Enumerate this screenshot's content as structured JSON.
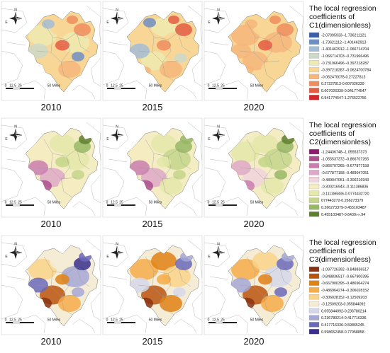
{
  "years": [
    "2010",
    "2015",
    "2020"
  ],
  "scale_labels": [
    "0",
    "12.5",
    "25",
    "50 Miles"
  ],
  "compass_letters": {
    "north": "N",
    "east": "E"
  },
  "rows": [
    {
      "id": "c1",
      "legend_title": [
        "The local regression",
        "coefficients of",
        "C1(dimensionless)"
      ],
      "legend_items": [
        {
          "label": "-2.07095933--1.736211121",
          "color": "#3a5ea8"
        },
        {
          "label": "-1.73621112--1.401462913",
          "color": "#6e8fc4"
        },
        {
          "label": "-1.401462912--1.066714704",
          "color": "#a3bcd6"
        },
        {
          "label": "-1.066714703--0.731966496",
          "color": "#cdd9c8"
        },
        {
          "label": "-0.731966496--0.397218287",
          "color": "#eeeab2"
        },
        {
          "label": "-0.397218287--0.0624700784",
          "color": "#f8d796"
        },
        {
          "label": "-0.062470078-0.27227813",
          "color": "#f6b67b"
        },
        {
          "label": "0.27227813-0.607026339",
          "color": "#f08d5f"
        },
        {
          "label": "0.607026339-0.941774547",
          "color": "#e55c44"
        },
        {
          "label": "0.941774547-1.276522756",
          "color": "#d7262b"
        }
      ]
    },
    {
      "id": "c2",
      "legend_title": [
        "The local regression",
        "coefficients of",
        "C2(dimensionless)"
      ],
      "legend_items": [
        {
          "label": "-1.24436748--1.055537373",
          "color": "#8e1a6e"
        },
        {
          "label": "-1.055537372--0.866707265",
          "color": "#ad4e8f"
        },
        {
          "label": "-0.866707265--0.677877158",
          "color": "#c97eaf"
        },
        {
          "label": "-0.677877158--0.489047051",
          "color": "#dea9c8"
        },
        {
          "label": "-0.489047051--0.300216943",
          "color": "#f0d3dc"
        },
        {
          "label": "-0.300216943--0.111386836",
          "color": "#f4ecc2"
        },
        {
          "label": "-0.111386836-0.0774432720",
          "color": "#e4e8a9"
        },
        {
          "label": "077443272-0.266273379",
          "color": "#c4d68a"
        },
        {
          "label": "0.266273379-0.455103487",
          "color": "#97b765"
        },
        {
          "label": "0.455103487-0.6439»».94",
          "color": "#5e7f2c"
        }
      ]
    },
    {
      "id": "c3",
      "legend_title": [
        "The local regression",
        "coefficients of",
        "C3(dimensionless)"
      ],
      "legend_items": [
        {
          "label": "-1.097726392--0.848836517",
          "color": "#8b3312"
        },
        {
          "label": "-0.848836517--0.667900395",
          "color": "#b8550f"
        },
        {
          "label": "-0.667900395--0.486964274",
          "color": "#e08214"
        },
        {
          "label": "-0.486964274--0.306028152",
          "color": "#f4ad4a"
        },
        {
          "label": "-0.306028152--0.12509203",
          "color": "#f9d38a"
        },
        {
          "label": "-0.12509203-0.055844092",
          "color": "#f5ecd6"
        },
        {
          "label": "0.055844092-0.236780214",
          "color": "#d6d8ea"
        },
        {
          "label": "0.236780214-0.417716336",
          "color": "#a5a8d6"
        },
        {
          "label": "0.417716336-0.59865245",
          "color": "#6a6ab8"
        },
        {
          "label": "0.598652458-0.77958858",
          "color": "#3a2f8c"
        }
      ]
    }
  ]
}
